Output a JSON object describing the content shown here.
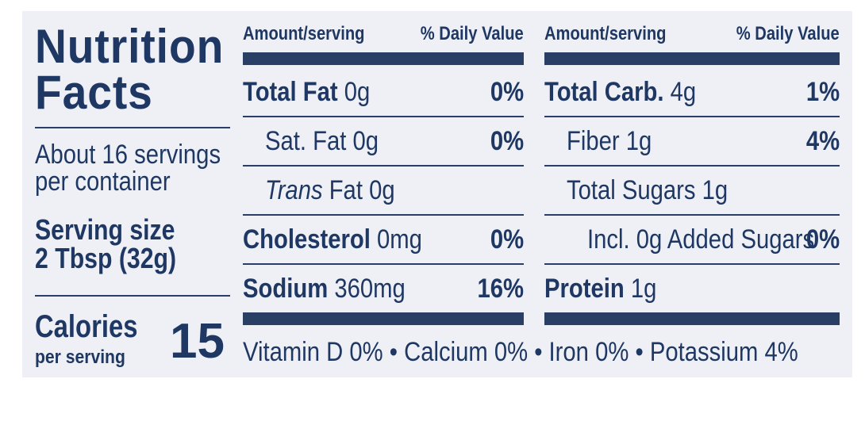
{
  "panel": {
    "title_line1": "Nutrition",
    "title_line2": "Facts",
    "servings_line1": "About 16 servings",
    "servings_line2": "per container",
    "serving_size_label": "Serving size",
    "serving_size_value": "2 Tbsp (32g)",
    "calories_label": "Calories",
    "calories_sub": "per serving",
    "calories_value": "15"
  },
  "headers": {
    "amount": "Amount/serving",
    "daily_value": "% Daily Value"
  },
  "left_column": [
    {
      "name": "Total Fat",
      "amount": " 0g",
      "pct": "0%"
    },
    {
      "name": "Sat. Fat 0g",
      "amount": "",
      "pct": "0%"
    },
    {
      "name": "Trans",
      "amount": " Fat 0g",
      "pct": ""
    },
    {
      "name": "Cholesterol",
      "amount": " 0mg",
      "pct": "0%"
    },
    {
      "name": "Sodium",
      "amount": " 360mg",
      "pct": "16%"
    }
  ],
  "right_column": [
    {
      "name": "Total Carb.",
      "amount": " 4g",
      "pct": "1%"
    },
    {
      "name": "Fiber 1g",
      "amount": "",
      "pct": "4%"
    },
    {
      "name": "Total Sugars 1g",
      "amount": "",
      "pct": ""
    },
    {
      "name": "Incl. 0g Added Sugars",
      "amount": "",
      "pct": "0%"
    },
    {
      "name": "Protein",
      "amount": " 1g",
      "pct": ""
    }
  ],
  "footer": "Vitamin D 0% • Calcium 0% • Iron 0% • Potassium 4%",
  "colors": {
    "text": "#1f3763",
    "rule": "#2a3f66",
    "background": "#eef0f5"
  }
}
